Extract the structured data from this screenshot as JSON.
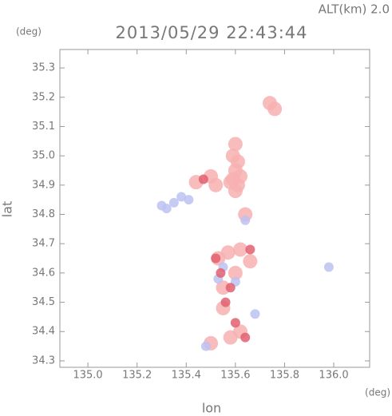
{
  "chart_data": {
    "type": "scatter",
    "title": "2013/05/29 22:43:44",
    "subtitle": "ALT(km) 2.0",
    "x_label": "lon",
    "y_label": "lat",
    "x_unit": "(deg)",
    "y_unit": "(deg)",
    "xlim": [
      134.886,
      136.146
    ],
    "ylim": [
      34.278,
      35.363
    ],
    "xticks": [
      {
        "value": 135,
        "label": "135.0"
      },
      135.2,
      135.4,
      135.6,
      135.8,
      {
        "value": 136,
        "label": "136.0"
      }
    ],
    "yticks": [
      34.3,
      34.4,
      34.5,
      34.6,
      34.7,
      34.8,
      34.9,
      {
        "value": 35,
        "label": "35.0"
      },
      35.1,
      35.2,
      35.3
    ],
    "series": [
      {
        "color": "#f8b0b0",
        "x": [
          135.6,
          135.59,
          135.61,
          135.6,
          135.59,
          135.61,
          135.6,
          135.58,
          135.62,
          135.5,
          135.52,
          135.74,
          135.76,
          135.44,
          135.64,
          135.53,
          135.57,
          135.6,
          135.55,
          135.55,
          135.62,
          135.58,
          135.5,
          135.62,
          135.66
        ],
        "y": [
          35.04,
          35.0,
          34.98,
          34.95,
          34.92,
          34.9,
          34.88,
          34.91,
          34.93,
          34.93,
          34.9,
          35.18,
          35.16,
          34.91,
          34.8,
          34.65,
          34.67,
          34.6,
          34.55,
          34.48,
          34.4,
          34.38,
          34.36,
          34.68,
          34.64
        ]
      },
      {
        "color": "#bcc2f2",
        "x": [
          135.35,
          135.38,
          135.41,
          135.32,
          135.3,
          135.55,
          135.6,
          135.68,
          135.48,
          135.98,
          135.53,
          135.64
        ],
        "y": [
          34.84,
          34.86,
          34.85,
          34.82,
          34.83,
          34.62,
          34.57,
          34.46,
          34.35,
          34.62,
          34.58,
          34.78
        ]
      },
      {
        "color": "#e0606e",
        "x": [
          135.47,
          135.52,
          135.58,
          135.56,
          135.6,
          135.64,
          135.54,
          135.66
        ],
        "y": [
          34.92,
          34.65,
          34.55,
          34.5,
          34.43,
          34.38,
          34.6,
          34.68
        ]
      }
    ]
  }
}
